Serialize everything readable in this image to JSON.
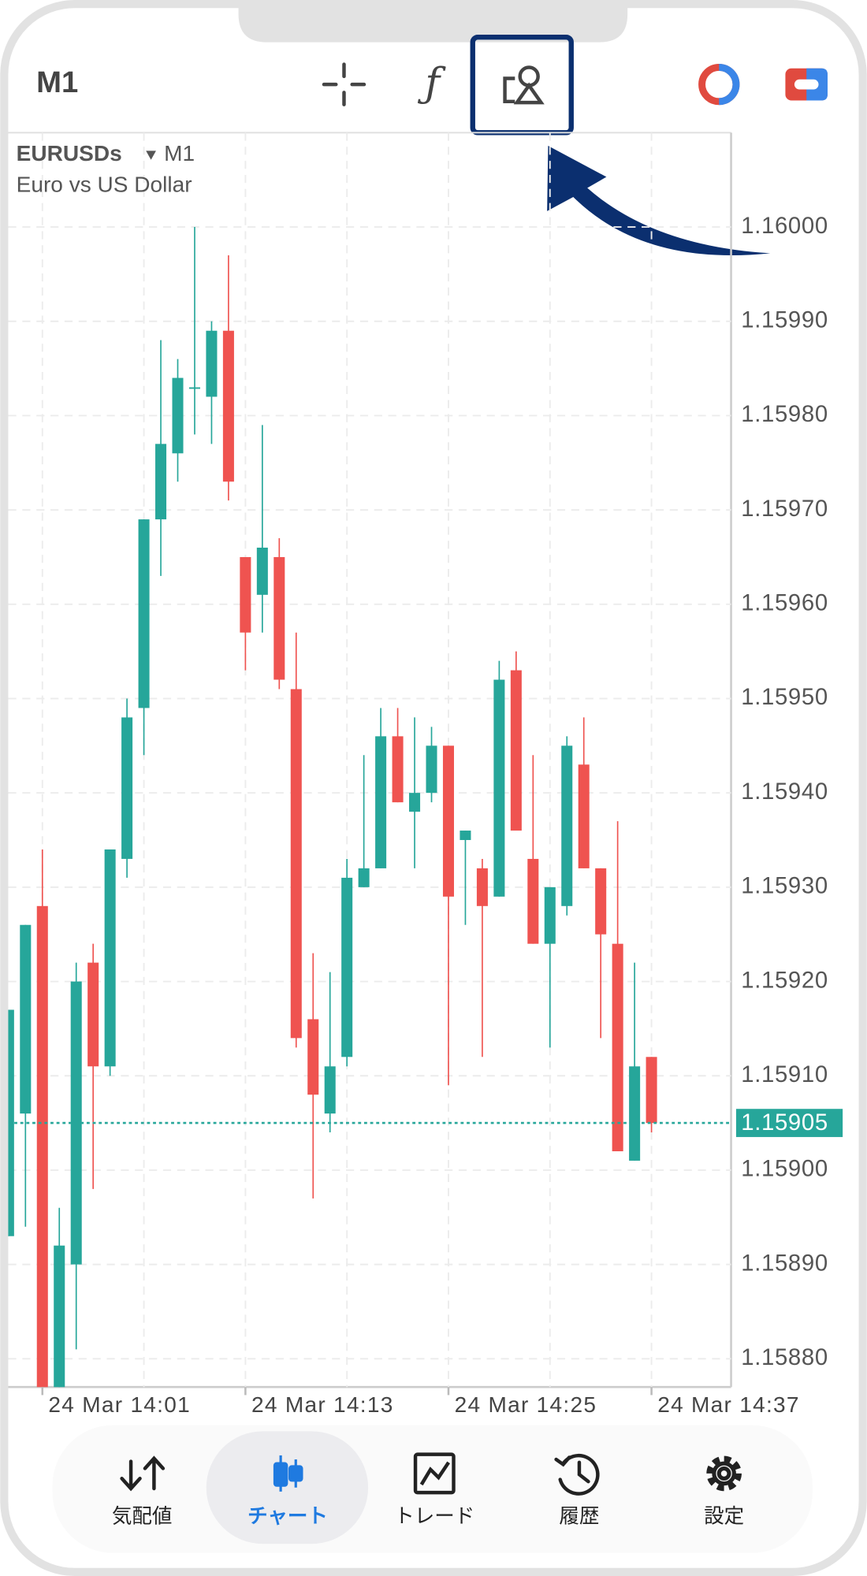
{
  "header": {
    "timeframe": "M1"
  },
  "chart_data": {
    "type": "candlestick",
    "title": "EURUSDs",
    "timeframe": "M1",
    "subtitle": "Euro vs US Dollar",
    "categories": [
      null,
      null,
      "24 Mar 14:01",
      null,
      null,
      null,
      null,
      null,
      null,
      null,
      null,
      null,
      null,
      null,
      "24 Mar 14:13",
      null,
      null,
      null,
      null,
      null,
      null,
      null,
      null,
      null,
      null,
      null,
      "24 Mar 14:25",
      null,
      null,
      null,
      null,
      null,
      null,
      null,
      null,
      null,
      null,
      null,
      "24 Mar 14:37"
    ],
    "open": [
      1.15893,
      1.15906,
      1.15928,
      1.15876,
      1.1589,
      1.15922,
      1.15911,
      1.15933,
      1.15949,
      1.15969,
      1.15976,
      1.15983,
      1.15982,
      1.15989,
      1.15965,
      1.15961,
      1.15965,
      1.15951,
      1.15916,
      1.15906,
      1.15912,
      1.1593,
      1.15932,
      1.15946,
      1.15938,
      1.1594,
      1.15945,
      1.15935,
      1.15932,
      1.15929,
      1.15953,
      1.15933,
      1.15924,
      1.15928,
      1.15943,
      1.15932,
      1.15924,
      1.15901,
      1.15912
    ],
    "high": [
      1.15917,
      1.15926,
      1.15934,
      1.15896,
      1.15922,
      1.15924,
      1.15934,
      1.1595,
      1.15969,
      1.15988,
      1.15986,
      1.16,
      1.1599,
      1.15997,
      1.15965,
      1.15979,
      1.15967,
      1.15957,
      1.15923,
      1.15921,
      1.15933,
      1.15944,
      1.15949,
      1.15949,
      1.15948,
      1.15947,
      1.15945,
      1.15936,
      1.15933,
      1.15954,
      1.15955,
      1.15944,
      1.1593,
      1.15946,
      1.15948,
      1.15932,
      1.15937,
      1.15922,
      1.15912
    ],
    "low": [
      1.15893,
      1.15894,
      1.15875,
      1.15875,
      1.15881,
      1.15898,
      1.1591,
      1.15931,
      1.15944,
      1.15963,
      1.15973,
      1.15978,
      1.15977,
      1.15971,
      1.15953,
      1.15957,
      1.15951,
      1.15913,
      1.15897,
      1.15904,
      1.15911,
      1.1593,
      1.15932,
      1.15939,
      1.15932,
      1.15939,
      1.15909,
      1.15926,
      1.15912,
      1.15929,
      1.15936,
      1.15924,
      1.15913,
      1.15927,
      1.15932,
      1.15914,
      1.15902,
      1.15901,
      1.15904
    ],
    "close": [
      1.15917,
      1.15926,
      1.15876,
      1.15892,
      1.1592,
      1.15911,
      1.15934,
      1.15948,
      1.15969,
      1.15977,
      1.15984,
      1.15983,
      1.15989,
      1.15973,
      1.15957,
      1.15966,
      1.15952,
      1.15914,
      1.15908,
      1.15911,
      1.15931,
      1.15932,
      1.15946,
      1.15939,
      1.1594,
      1.15945,
      1.15929,
      1.15936,
      1.15928,
      1.15952,
      1.15936,
      1.15924,
      1.1593,
      1.15945,
      1.15932,
      1.15925,
      1.15902,
      1.15911,
      1.15905
    ],
    "up_color": "#26a69a",
    "down_color": "#ef5350",
    "ylim": [
      1.15877,
      1.1601
    ],
    "yticks": [
      {
        "value": 1.1588,
        "label": "1.15880"
      },
      {
        "value": 1.1589,
        "label": "1.15890"
      },
      {
        "value": 1.159,
        "label": "1.15900"
      },
      {
        "value": 1.1591,
        "label": "1.15910"
      },
      {
        "value": 1.1592,
        "label": "1.15920"
      },
      {
        "value": 1.1593,
        "label": "1.15930"
      },
      {
        "value": 1.1594,
        "label": "1.15940"
      },
      {
        "value": 1.1595,
        "label": "1.15950"
      },
      {
        "value": 1.1596,
        "label": "1.15960"
      },
      {
        "value": 1.1597,
        "label": "1.15970"
      },
      {
        "value": 1.1598,
        "label": "1.15980"
      },
      {
        "value": 1.1599,
        "label": "1.15990"
      },
      {
        "value": 1.16,
        "label": "1.16000"
      }
    ],
    "grid": true,
    "last_price": {
      "value": 1.15905,
      "label": "1.15905"
    }
  },
  "nav": {
    "items": [
      "気配値",
      "チャート",
      "トレード",
      "履歴",
      "設定"
    ]
  }
}
